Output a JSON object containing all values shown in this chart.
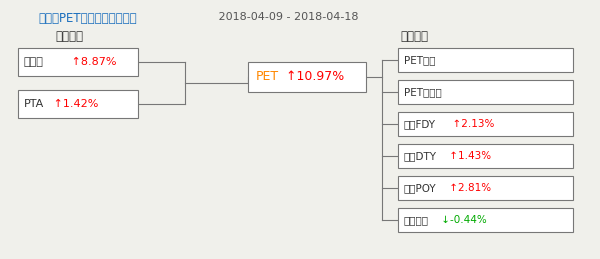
{
  "title": "生意社PET产业链价格涨跌图",
  "date_range": " 2018-04-09 - 2018-04-18",
  "title_color": "#1a6ebd",
  "date_color": "#555555",
  "upstream_label": "上游产品",
  "downstream_label": "下游产品",
  "label_color": "#333333",
  "upstream": [
    {
      "name": "乙二醇",
      "change": " ↑8.87%",
      "change_color": "#ff0000"
    },
    {
      "name": "PTA",
      "change": " ↑1.42%",
      "change_color": "#ff0000"
    }
  ],
  "center": {
    "name": "PET",
    "change": " ↑10.97%",
    "name_color": "#ff8800",
    "change_color": "#ff0000"
  },
  "downstream": [
    {
      "name": "PET薄膜",
      "change": "",
      "change_color": "#ff0000"
    },
    {
      "name": "PET塑料瓶",
      "change": "",
      "change_color": "#ff0000"
    },
    {
      "name": "涤纶FDY",
      "change": "  ↑2.13%",
      "change_color": "#ff0000"
    },
    {
      "name": "涤纶DTY",
      "change": " ↑1.43%",
      "change_color": "#ff0000"
    },
    {
      "name": "涤纶POY",
      "change": " ↑2.81%",
      "change_color": "#ff0000"
    },
    {
      "name": "涤纶短纤",
      "change": " ↓-0.44%",
      "change_color": "#00aa00"
    }
  ],
  "box_edge_color": "#777777",
  "box_face_color": "#ffffff",
  "line_color": "#777777",
  "background_color": "#f0f0eb"
}
